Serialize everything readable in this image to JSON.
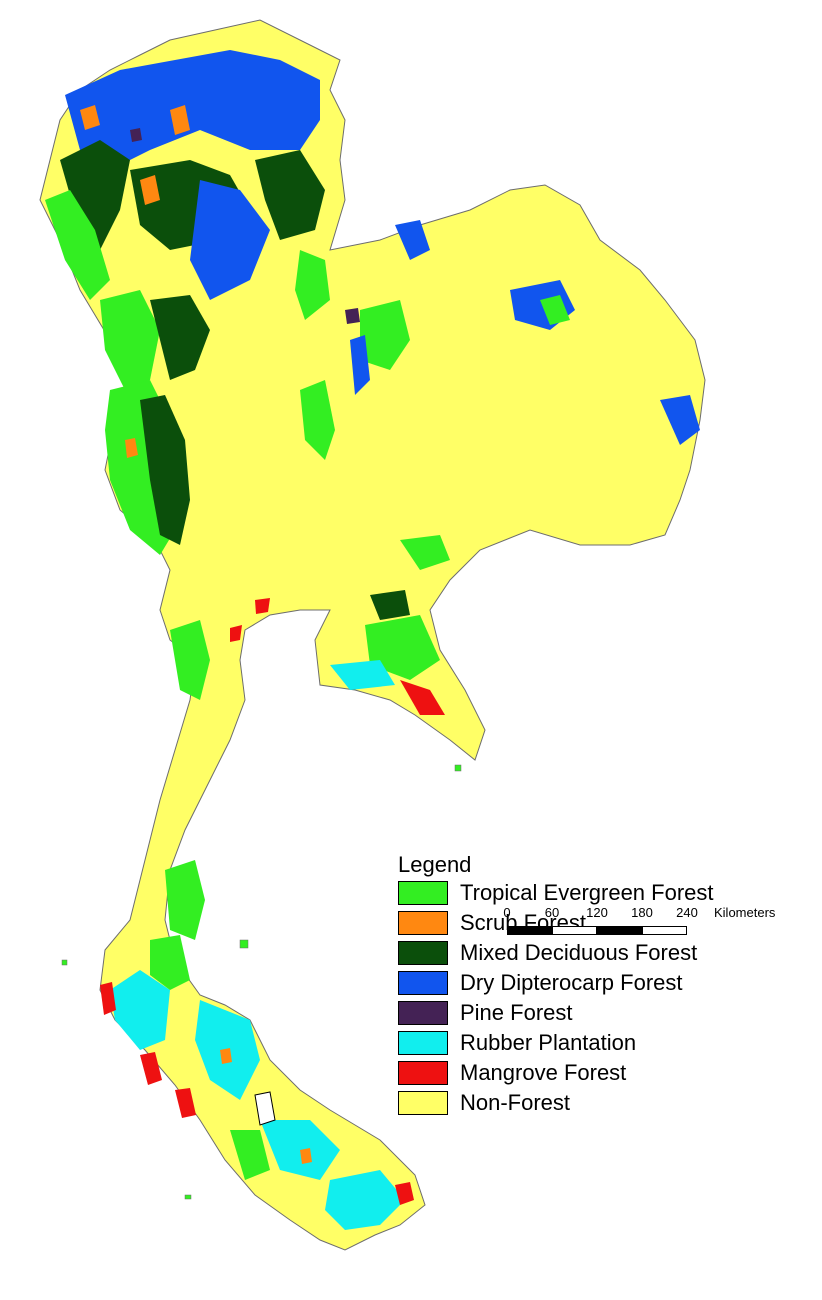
{
  "colors": {
    "tropical_evergreen": "#33ee22",
    "scrub": "#ff8811",
    "mixed_deciduous": "#0b4f0b",
    "dry_dipterocarp": "#1155ee",
    "pine": "#442255",
    "rubber": "#11eeee",
    "mangrove": "#ee1111",
    "non_forest": "#ffff66",
    "outline": "#6d6d6d"
  },
  "legend": {
    "title": "Legend",
    "items": [
      {
        "label": "Tropical Evergreen Forest",
        "color": "#33ee22"
      },
      {
        "label": "Scrub Forest",
        "color": "#ff8811"
      },
      {
        "label": "Mixed Deciduous Forest",
        "color": "#0b4f0b"
      },
      {
        "label": "Dry Dipterocarp Forest",
        "color": "#1155ee"
      },
      {
        "label": "Pine Forest",
        "color": "#442255"
      },
      {
        "label": "Rubber Plantation",
        "color": "#11eeee"
      },
      {
        "label": "Mangrove Forest",
        "color": "#ee1111"
      },
      {
        "label": "Non-Forest",
        "color": "#ffff66"
      }
    ]
  },
  "scale": {
    "ticks": [
      "0",
      "60",
      "120",
      "180",
      "240"
    ],
    "unit": "Kilometers"
  }
}
